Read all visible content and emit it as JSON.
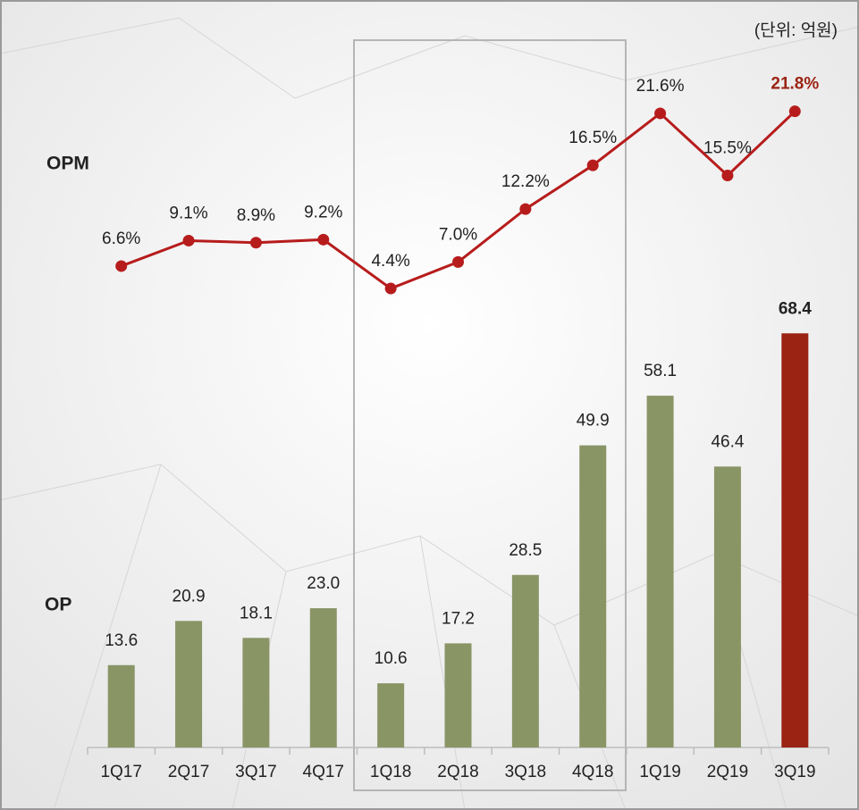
{
  "chart_data": {
    "type": "combo",
    "unit_note": "(단위: 억원)",
    "categories": [
      "1Q17",
      "2Q17",
      "3Q17",
      "4Q17",
      "1Q18",
      "2Q18",
      "3Q18",
      "4Q18",
      "1Q19",
      "2Q19",
      "3Q19"
    ],
    "series": [
      {
        "name": "OPM",
        "type": "line",
        "color": "#b71c1c",
        "values": [
          6.6,
          9.1,
          8.9,
          9.2,
          4.4,
          7.0,
          12.2,
          16.5,
          21.6,
          15.5,
          21.8
        ],
        "value_labels": [
          "6.6%",
          "9.1%",
          "8.9%",
          "9.2%",
          "4.4%",
          "7.0%",
          "12.2%",
          "16.5%",
          "21.6%",
          "15.5%",
          "21.8%"
        ]
      },
      {
        "name": "OP",
        "type": "bar",
        "color": "#8a9566",
        "colors": [
          "#8a9566",
          "#8a9566",
          "#8a9566",
          "#8a9566",
          "#8a9566",
          "#8a9566",
          "#8a9566",
          "#8a9566",
          "#8a9566",
          "#8a9566",
          "#9b2313"
        ],
        "values": [
          13.6,
          20.9,
          18.1,
          23.0,
          10.6,
          17.2,
          28.5,
          49.9,
          58.1,
          46.4,
          68.4
        ],
        "value_labels": [
          "13.6",
          "20.9",
          "18.1",
          "23.0",
          "10.6",
          "17.2",
          "28.5",
          "49.9",
          "58.1",
          "46.4",
          "68.4"
        ]
      }
    ]
  }
}
